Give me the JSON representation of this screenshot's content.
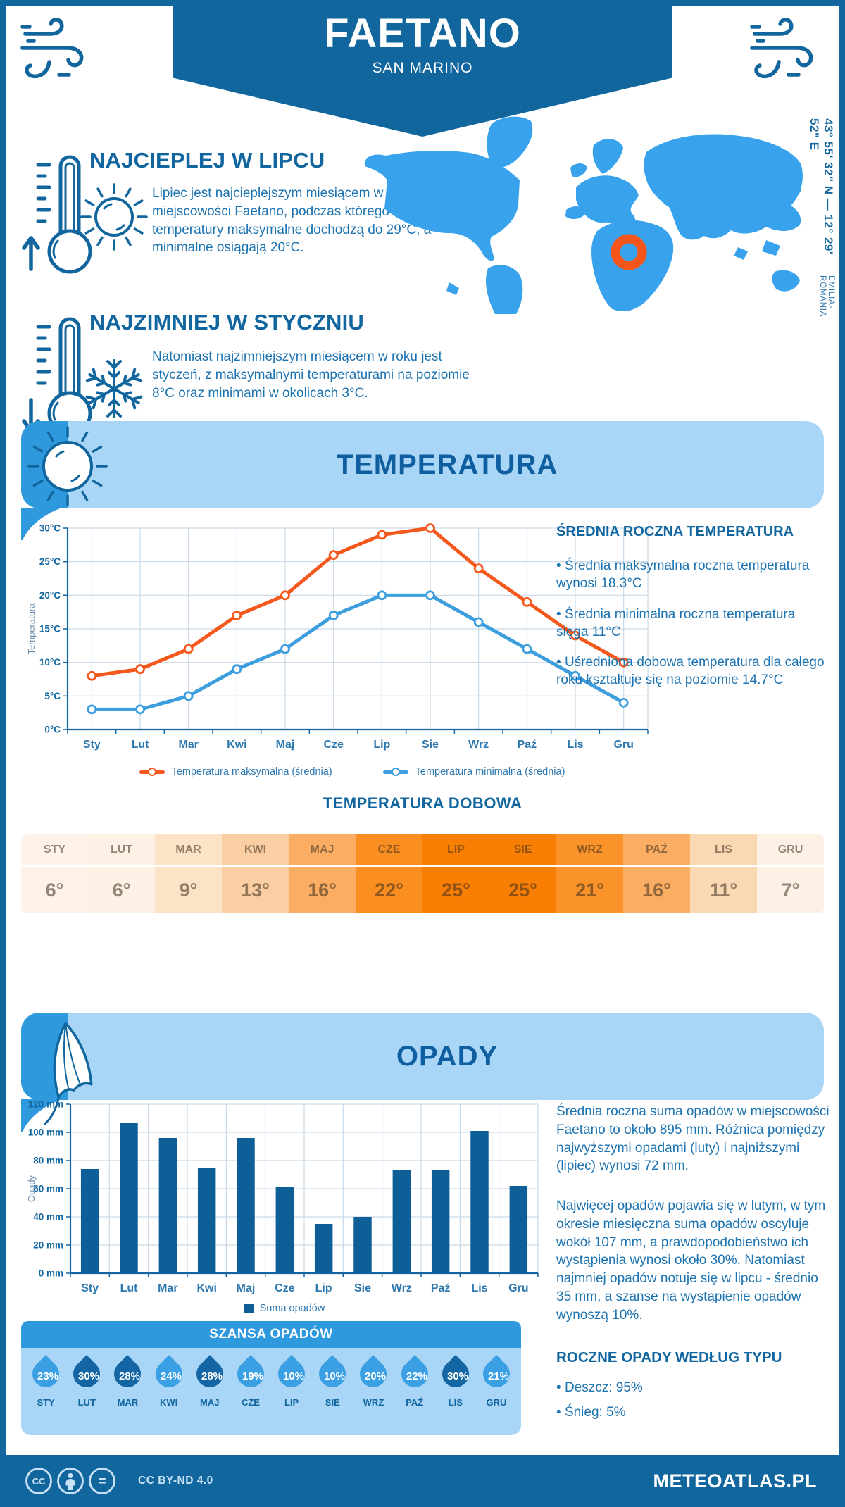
{
  "page": {
    "title": "FAETANO",
    "subtitle": "SAN MARINO"
  },
  "coords": {
    "line": "43° 55' 32\" N — 12° 29' 52\" E",
    "region": "EMILIA-ROMANIA"
  },
  "warm": {
    "heading": "NAJCIEPLEJ W LIPCU",
    "text": "Lipiec jest najcieplejszym miesiącem w miejscowości Faetano, podczas którego średnie temperatury maksymalne dochodzą do 29°C, a minimalne osiągają 20°C."
  },
  "cold": {
    "heading": "NAJZIMNIEJ W STYCZNIU",
    "text": "Natomiast najzimniejszym miesiącem w roku jest styczeń, z maksymalnymi temperaturami na poziomie 8°C oraz minimami w okolicach 3°C."
  },
  "temperature_section": {
    "title": "TEMPERATURA",
    "annual": {
      "heading": "ŚREDNIA ROCZNA TEMPERATURA",
      "bullets": [
        "Średnia maksymalna roczna temperatura wynosi 18.3°C",
        "Średnia minimalna roczna temperatura sięga 11°C",
        "Uśredniona dobowa temperatura dla całego roku kształtuje się na poziomie 14.7°C"
      ]
    },
    "daily": {
      "heading": "TEMPERATURA DOBOWA",
      "months": [
        "STY",
        "LUT",
        "MAR",
        "KWI",
        "MAJ",
        "CZE",
        "LIP",
        "SIE",
        "WRZ",
        "PAŹ",
        "LIS",
        "GRU"
      ],
      "values": [
        "6°",
        "6°",
        "9°",
        "13°",
        "16°",
        "22°",
        "25°",
        "25°",
        "21°",
        "16°",
        "11°",
        "7°"
      ],
      "cell_colors": [
        "#FDF3EA",
        "#FDF1E5",
        "#FCE2C6",
        "#FBCFA3",
        "#FBAE63",
        "#FA8E20",
        "#F87E04",
        "#F87E04",
        "#FA9329",
        "#FBAE63",
        "#FBD8B4",
        "#FDF0E4"
      ]
    }
  },
  "precip_section": {
    "title": "OPADY",
    "paragraphs": [
      "Średnia roczna suma opadów w miejscowości Faetano to około 895 mm. Różnica pomiędzy najwyższymi opadami (luty) i najniższymi (lipiec) wynosi 72 mm.",
      "Najwięcej opadów pojawia się w lutym, w tym okresie miesięczna suma opadów oscyluje wokół 107 mm, a prawdopodobieństwo ich wystąpienia wynosi około 30%. Natomiast najmniej opadów notuje się w lipcu - średnio 35 mm, a szanse na wystąpienie opadów wynoszą 10%."
    ],
    "chance": {
      "heading": "SZANSA OPADÓW",
      "items": [
        {
          "month": "STY",
          "value": "23%",
          "dark": false
        },
        {
          "month": "LUT",
          "value": "30%",
          "dark": true
        },
        {
          "month": "MAR",
          "value": "28%",
          "dark": true
        },
        {
          "month": "KWI",
          "value": "24%",
          "dark": false
        },
        {
          "month": "MAJ",
          "value": "28%",
          "dark": true
        },
        {
          "month": "CZE",
          "value": "19%",
          "dark": false
        },
        {
          "month": "LIP",
          "value": "10%",
          "dark": false
        },
        {
          "month": "SIE",
          "value": "10%",
          "dark": false
        },
        {
          "month": "WRZ",
          "value": "20%",
          "dark": false
        },
        {
          "month": "PAŹ",
          "value": "22%",
          "dark": false
        },
        {
          "month": "LIS",
          "value": "30%",
          "dark": true
        },
        {
          "month": "GRU",
          "value": "21%",
          "dark": false
        }
      ]
    },
    "types": {
      "heading": "ROCZNE OPADY WEDŁUG TYPU",
      "bullets": [
        "Deszcz: 95%",
        "Śnieg: 5%"
      ]
    }
  },
  "chart_data": [
    {
      "type": "line",
      "categories": [
        "Sty",
        "Lut",
        "Mar",
        "Kwi",
        "Maj",
        "Cze",
        "Lip",
        "Sie",
        "Wrz",
        "Paź",
        "Lis",
        "Gru"
      ],
      "series": [
        {
          "name": "Temperatura maksymalna (średnia)",
          "color": "#F4581D",
          "values": [
            8,
            9,
            12,
            17,
            20,
            26,
            29,
            30,
            24,
            19,
            14,
            10
          ]
        },
        {
          "name": "Temperatura minimalna (średnia)",
          "color": "#3D9EDE",
          "values": [
            3,
            3,
            5,
            9,
            12,
            17,
            20,
            20,
            16,
            12,
            8,
            4
          ]
        }
      ],
      "title": "",
      "xlabel": "",
      "ylabel": "Temperatura",
      "ylim": [
        0,
        30
      ],
      "ystep": 5,
      "ytick_suffix": "°C",
      "grid": true,
      "legend_position": "bottom"
    },
    {
      "type": "bar",
      "categories": [
        "Sty",
        "Lut",
        "Mar",
        "Kwi",
        "Maj",
        "Cze",
        "Lip",
        "Sie",
        "Wrz",
        "Paź",
        "Lis",
        "Gru"
      ],
      "series": [
        {
          "name": "Suma opadów",
          "color": "#0E5E97",
          "values": [
            74,
            107,
            96,
            75,
            96,
            61,
            35,
            40,
            73,
            73,
            101,
            62
          ]
        }
      ],
      "title": "",
      "xlabel": "",
      "ylabel": "Opady",
      "ylim": [
        0,
        120
      ],
      "ystep": 20,
      "ytick_suffix": " mm",
      "grid": true,
      "legend_position": "bottom"
    }
  ],
  "footer": {
    "license": "CC BY-ND 4.0",
    "brand": "METEOATLAS.PL"
  },
  "colors": {
    "dark_blue": "#11669E",
    "medium_blue": "#2F99DE",
    "light_blue": "#A9D6F7",
    "map_blue": "#38A3EC",
    "marker_orange": "#F4551A",
    "axis": "#1465A3",
    "grid": "#C9DAEA",
    "tick_label": "#11669F",
    "x_label": "#2E78B0",
    "drop_light": "#3AA0E3",
    "drop_dark": "#1465A3",
    "bar": "#0E5E97",
    "line_max": "#F4581D",
    "line_min": "#3D9EDE"
  }
}
